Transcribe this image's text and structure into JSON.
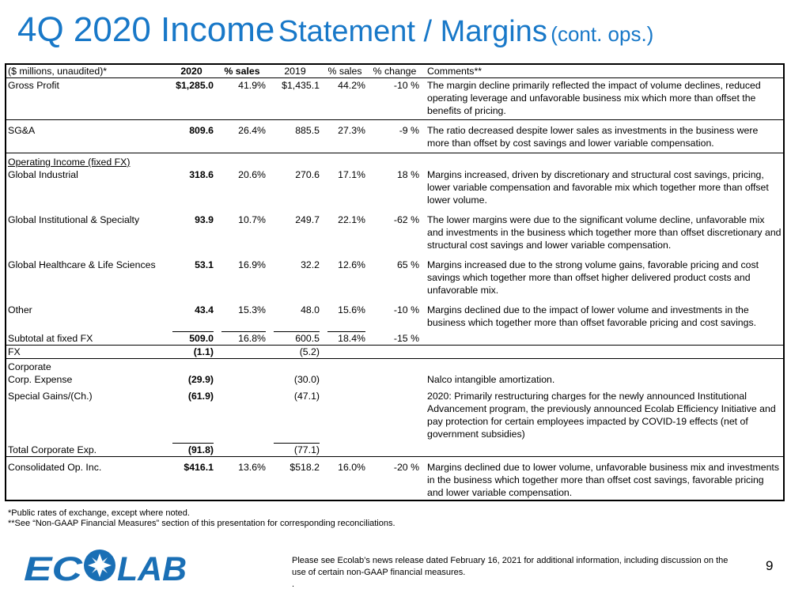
{
  "title": {
    "main": "4Q 2020 Income",
    "secondary": "Statement / Margins",
    "suffix": "(cont. ops.)"
  },
  "table": {
    "headers": [
      "($ millions, unaudited)*",
      "2020",
      "% sales",
      "2019",
      "% sales",
      "% change",
      "Comments**"
    ],
    "rows": [
      {
        "label": "Gross Profit",
        "v2020": "$1,285.0",
        "p2020": "41.9%",
        "v2019": "$1,435.1",
        "p2019": "44.2%",
        "chg": "-10 %",
        "comment": "The margin decline primarily reflected the impact of volume declines, reduced operating leverage and unfavorable business mix which more than offset the benefits of pricing."
      },
      {
        "label": "SG&A",
        "v2020": "809.6",
        "p2020": "26.4%",
        "v2019": "885.5",
        "p2019": "27.3%",
        "chg": "-9 %",
        "comment": "The ratio decreased despite lower sales as investments in the business were more than offset by cost savings and lower variable compensation."
      },
      {
        "label": "Operating Income (fixed FX)"
      },
      {
        "label": "Global Industrial",
        "v2020": "318.6",
        "p2020": "20.6%",
        "v2019": "270.6",
        "p2019": "17.1%",
        "chg": "18 %",
        "comment": "Margins increased, driven by discretionary and structural cost savings, pricing, lower variable compensation and favorable mix which together more than offset lower volume."
      },
      {
        "label": "Global Institutional & Specialty",
        "v2020": "93.9",
        "p2020": "10.7%",
        "v2019": "249.7",
        "p2019": "22.1%",
        "chg": "-62 %",
        "comment": "The lower margins were due to the significant volume decline, unfavorable mix and investments in the business which together more than offset discretionary and structural cost savings and lower variable compensation."
      },
      {
        "label": "Global Healthcare & Life Sciences",
        "v2020": "53.1",
        "p2020": "16.9%",
        "v2019": "32.2",
        "p2019": "12.6%",
        "chg": "65 %",
        "comment": "Margins increased due to the strong volume gains, favorable pricing and cost savings which together more than offset higher delivered product costs and unfavorable mix."
      },
      {
        "label": "Other",
        "v2020": "43.4",
        "p2020": "15.3%",
        "v2019": "48.0",
        "p2019": "15.6%",
        "chg": "-10 %",
        "comment": "Margins declined due to the impact of lower volume and investments in the business which together more than offset favorable pricing and cost savings."
      },
      {
        "label": "Subtotal at fixed FX",
        "v2020": "509.0",
        "p2020": "16.8%",
        "v2019": "600.5",
        "p2019": "18.4%",
        "chg": "-15 %"
      },
      {
        "label": "FX",
        "v2020": "(1.1)",
        "v2019": "(5.2)"
      },
      {
        "label": "Corporate"
      },
      {
        "label": "Corp. Expense",
        "v2020": "(29.9)",
        "v2019": "(30.0)",
        "comment": "Nalco intangible amortization."
      },
      {
        "label": "Special Gains/(Ch.)",
        "v2020": "(61.9)",
        "v2019": "(47.1)",
        "comment": "2020: Primarily restructuring charges for the newly announced Institutional Advancement program, the previously announced Ecolab Efficiency Initiative and pay protection for certain employees impacted by COVID-19 effects (net of government subsidies)"
      },
      {
        "label": "Total Corporate Exp.",
        "v2020": "(91.8)",
        "v2019": "(77.1)"
      },
      {
        "label": "Consolidated Op. Inc.",
        "v2020": "$416.1",
        "p2020": "13.6%",
        "v2019": "$518.2",
        "p2019": "16.0%",
        "chg": "-20 %",
        "comment": "Margins declined due to lower volume, unfavorable business mix and investments in the business which together more than offset cost savings, favorable pricing and lower variable compensation."
      }
    ]
  },
  "footnotes": [
    "*Public rates of exchange, except where noted.",
    "**See “Non-GAAP Financial Measures” section of this presentation for corresponding reconciliations."
  ],
  "logo": {
    "text": "ECOLAB",
    "color": "#1a6fb5"
  },
  "release_note": "Please see Ecolab’s news release dated February 16, 2021 for additional information, including discussion on the use of certain non-GAAP financial measures.",
  "trailing_dot": ".",
  "page_number": "9"
}
